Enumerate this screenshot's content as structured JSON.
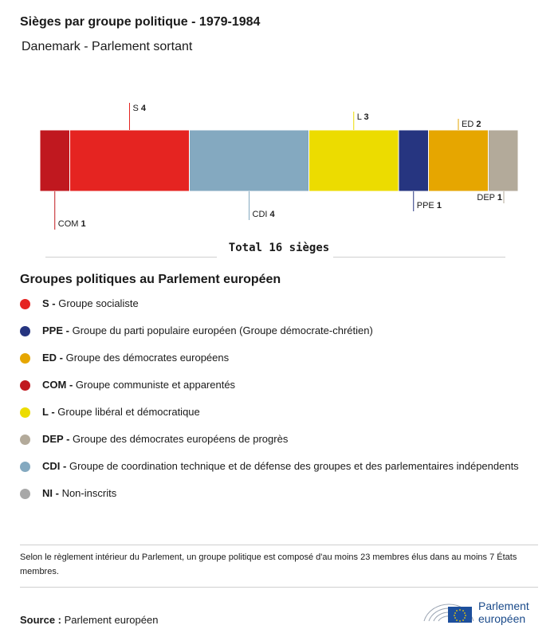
{
  "title": "Sièges par groupe politique - 1979-1984",
  "subtitle": "Danemark - Parlement sortant",
  "chart_data": {
    "type": "bar",
    "orientation": "stacked-horizontal",
    "total_label": "Total 16 sièges",
    "total": 16,
    "segments": [
      {
        "name": "COM",
        "value": 1,
        "color": "#c0181f",
        "label_position": "below"
      },
      {
        "name": "S",
        "value": 4,
        "color": "#e52421",
        "label_position": "above"
      },
      {
        "name": "CDI",
        "value": 4,
        "color": "#84a9c0",
        "label_position": "below"
      },
      {
        "name": "L",
        "value": 3,
        "color": "#ecdc00",
        "label_position": "above"
      },
      {
        "name": "PPE",
        "value": 1,
        "color": "#263580",
        "label_position": "below"
      },
      {
        "name": "ED",
        "value": 2,
        "color": "#e6a600",
        "label_position": "above"
      },
      {
        "name": "DEP",
        "value": 1,
        "color": "#b3aa9a",
        "label_position": "below"
      }
    ]
  },
  "legend": {
    "title": "Groupes politiques au Parlement européen",
    "items": [
      {
        "abbr": "S -",
        "desc": "Groupe socialiste",
        "color": "#e52421"
      },
      {
        "abbr": "PPE -",
        "desc": "Groupe du parti populaire européen (Groupe démocrate-chrétien)",
        "color": "#263580"
      },
      {
        "abbr": "ED -",
        "desc": "Groupe des démocrates européens",
        "color": "#e6a600"
      },
      {
        "abbr": "COM -",
        "desc": "Groupe communiste et apparentés",
        "color": "#c0181f"
      },
      {
        "abbr": "L -",
        "desc": "Groupe libéral et démocratique",
        "color": "#ecdc00"
      },
      {
        "abbr": "DEP -",
        "desc": "Groupe des démocrates européens de progrès",
        "color": "#b3aa9a"
      },
      {
        "abbr": "CDI -",
        "desc": "Groupe de coordination technique et de défense des groupes et des parlementaires indépendents",
        "color": "#84a9c0"
      },
      {
        "abbr": "NI -",
        "desc": "Non-inscrits",
        "color": "#a8a8a8"
      }
    ]
  },
  "note": "Selon le règlement intérieur du Parlement, un groupe politique est composé d'au moins 23 membres élus dans au moins 7 États membres.",
  "source": {
    "label": "Source :",
    "value": "Parlement européen"
  },
  "logo": {
    "line1": "Parlement",
    "line2": "européen",
    "icon": "european-parliament-logo"
  }
}
